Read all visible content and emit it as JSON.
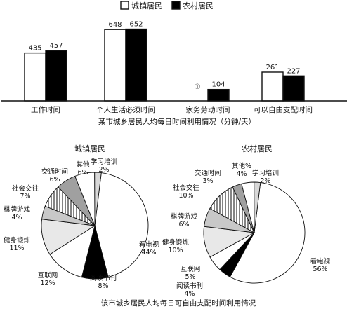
{
  "chart_data": [
    {
      "type": "bar",
      "title": "某市城乡居民人均每日时间利用情况（分钟/天）",
      "categories": [
        "工作时间",
        "个人生活必须时间",
        "家务劳动时间",
        "可以自由支配时间"
      ],
      "series": [
        {
          "name": "城镇居民",
          "values": [
            435,
            648,
            null,
            261
          ],
          "labels": [
            "435",
            "648",
            "①",
            "261"
          ],
          "color": "#ffffff"
        },
        {
          "name": "农村居民",
          "values": [
            457,
            652,
            104,
            227
          ],
          "labels": [
            "457",
            "652",
            "104",
            "227"
          ],
          "color": "#000000"
        }
      ],
      "ylim": [
        0,
        700
      ],
      "grid": false,
      "legend": "top-center"
    },
    {
      "type": "pie",
      "title": "城镇居民",
      "slices": [
        {
          "label": "看电视",
          "pct": "44%",
          "value": 44,
          "color": "#ffffff"
        },
        {
          "label": "阅读书刊",
          "pct": "8%",
          "value": 8,
          "color": "#000000"
        },
        {
          "label": "互联网",
          "pct": "12%",
          "value": 12,
          "color": "#ffffff"
        },
        {
          "label": "健身锻炼",
          "pct": "11%",
          "value": 11,
          "color": "#e8e8e8"
        },
        {
          "label": "棋牌游戏",
          "pct": "4%",
          "value": 4,
          "color": "#c8c8c8"
        },
        {
          "label": "社会交往",
          "pct": "7%",
          "value": 7,
          "color": "#6e6e6e"
        },
        {
          "label": "交通时间",
          "pct": "6%",
          "value": 6,
          "color": "#a0a0a0"
        },
        {
          "label": "其他",
          "pct": "6%",
          "value": 6,
          "color": "#ffffff"
        },
        {
          "label": "学习培训",
          "pct": "2%",
          "value": 2,
          "color": "#d8d8d8"
        }
      ]
    },
    {
      "type": "pie",
      "title": "农村居民",
      "slices": [
        {
          "label": "看电视",
          "pct": "56%",
          "value": 56,
          "color": "#ffffff"
        },
        {
          "label": "阅读书刊",
          "pct": "4%",
          "value": 4,
          "color": "#000000"
        },
        {
          "label": "互联网",
          "pct": "5%",
          "value": 5,
          "color": "#ffffff"
        },
        {
          "label": "健身锻炼",
          "pct": "10%",
          "value": 10,
          "color": "#e8e8e8"
        },
        {
          "label": "棋牌游戏",
          "pct": "6%",
          "value": 6,
          "color": "#c8c8c8"
        },
        {
          "label": "社会交往",
          "pct": "10%",
          "value": 10,
          "color": "#6e6e6e"
        },
        {
          "label": "交通时间",
          "pct": "3%",
          "value": 3,
          "color": "#a0a0a0"
        },
        {
          "label": "其他%",
          "pct": "4%",
          "value": 4,
          "color": "#ffffff"
        },
        {
          "label": "学习培训",
          "pct": "2%",
          "value": 2,
          "color": "#d8d8d8"
        }
      ]
    }
  ],
  "pie_caption": "该市城乡居民人均每日可自由支配时间利用情况"
}
